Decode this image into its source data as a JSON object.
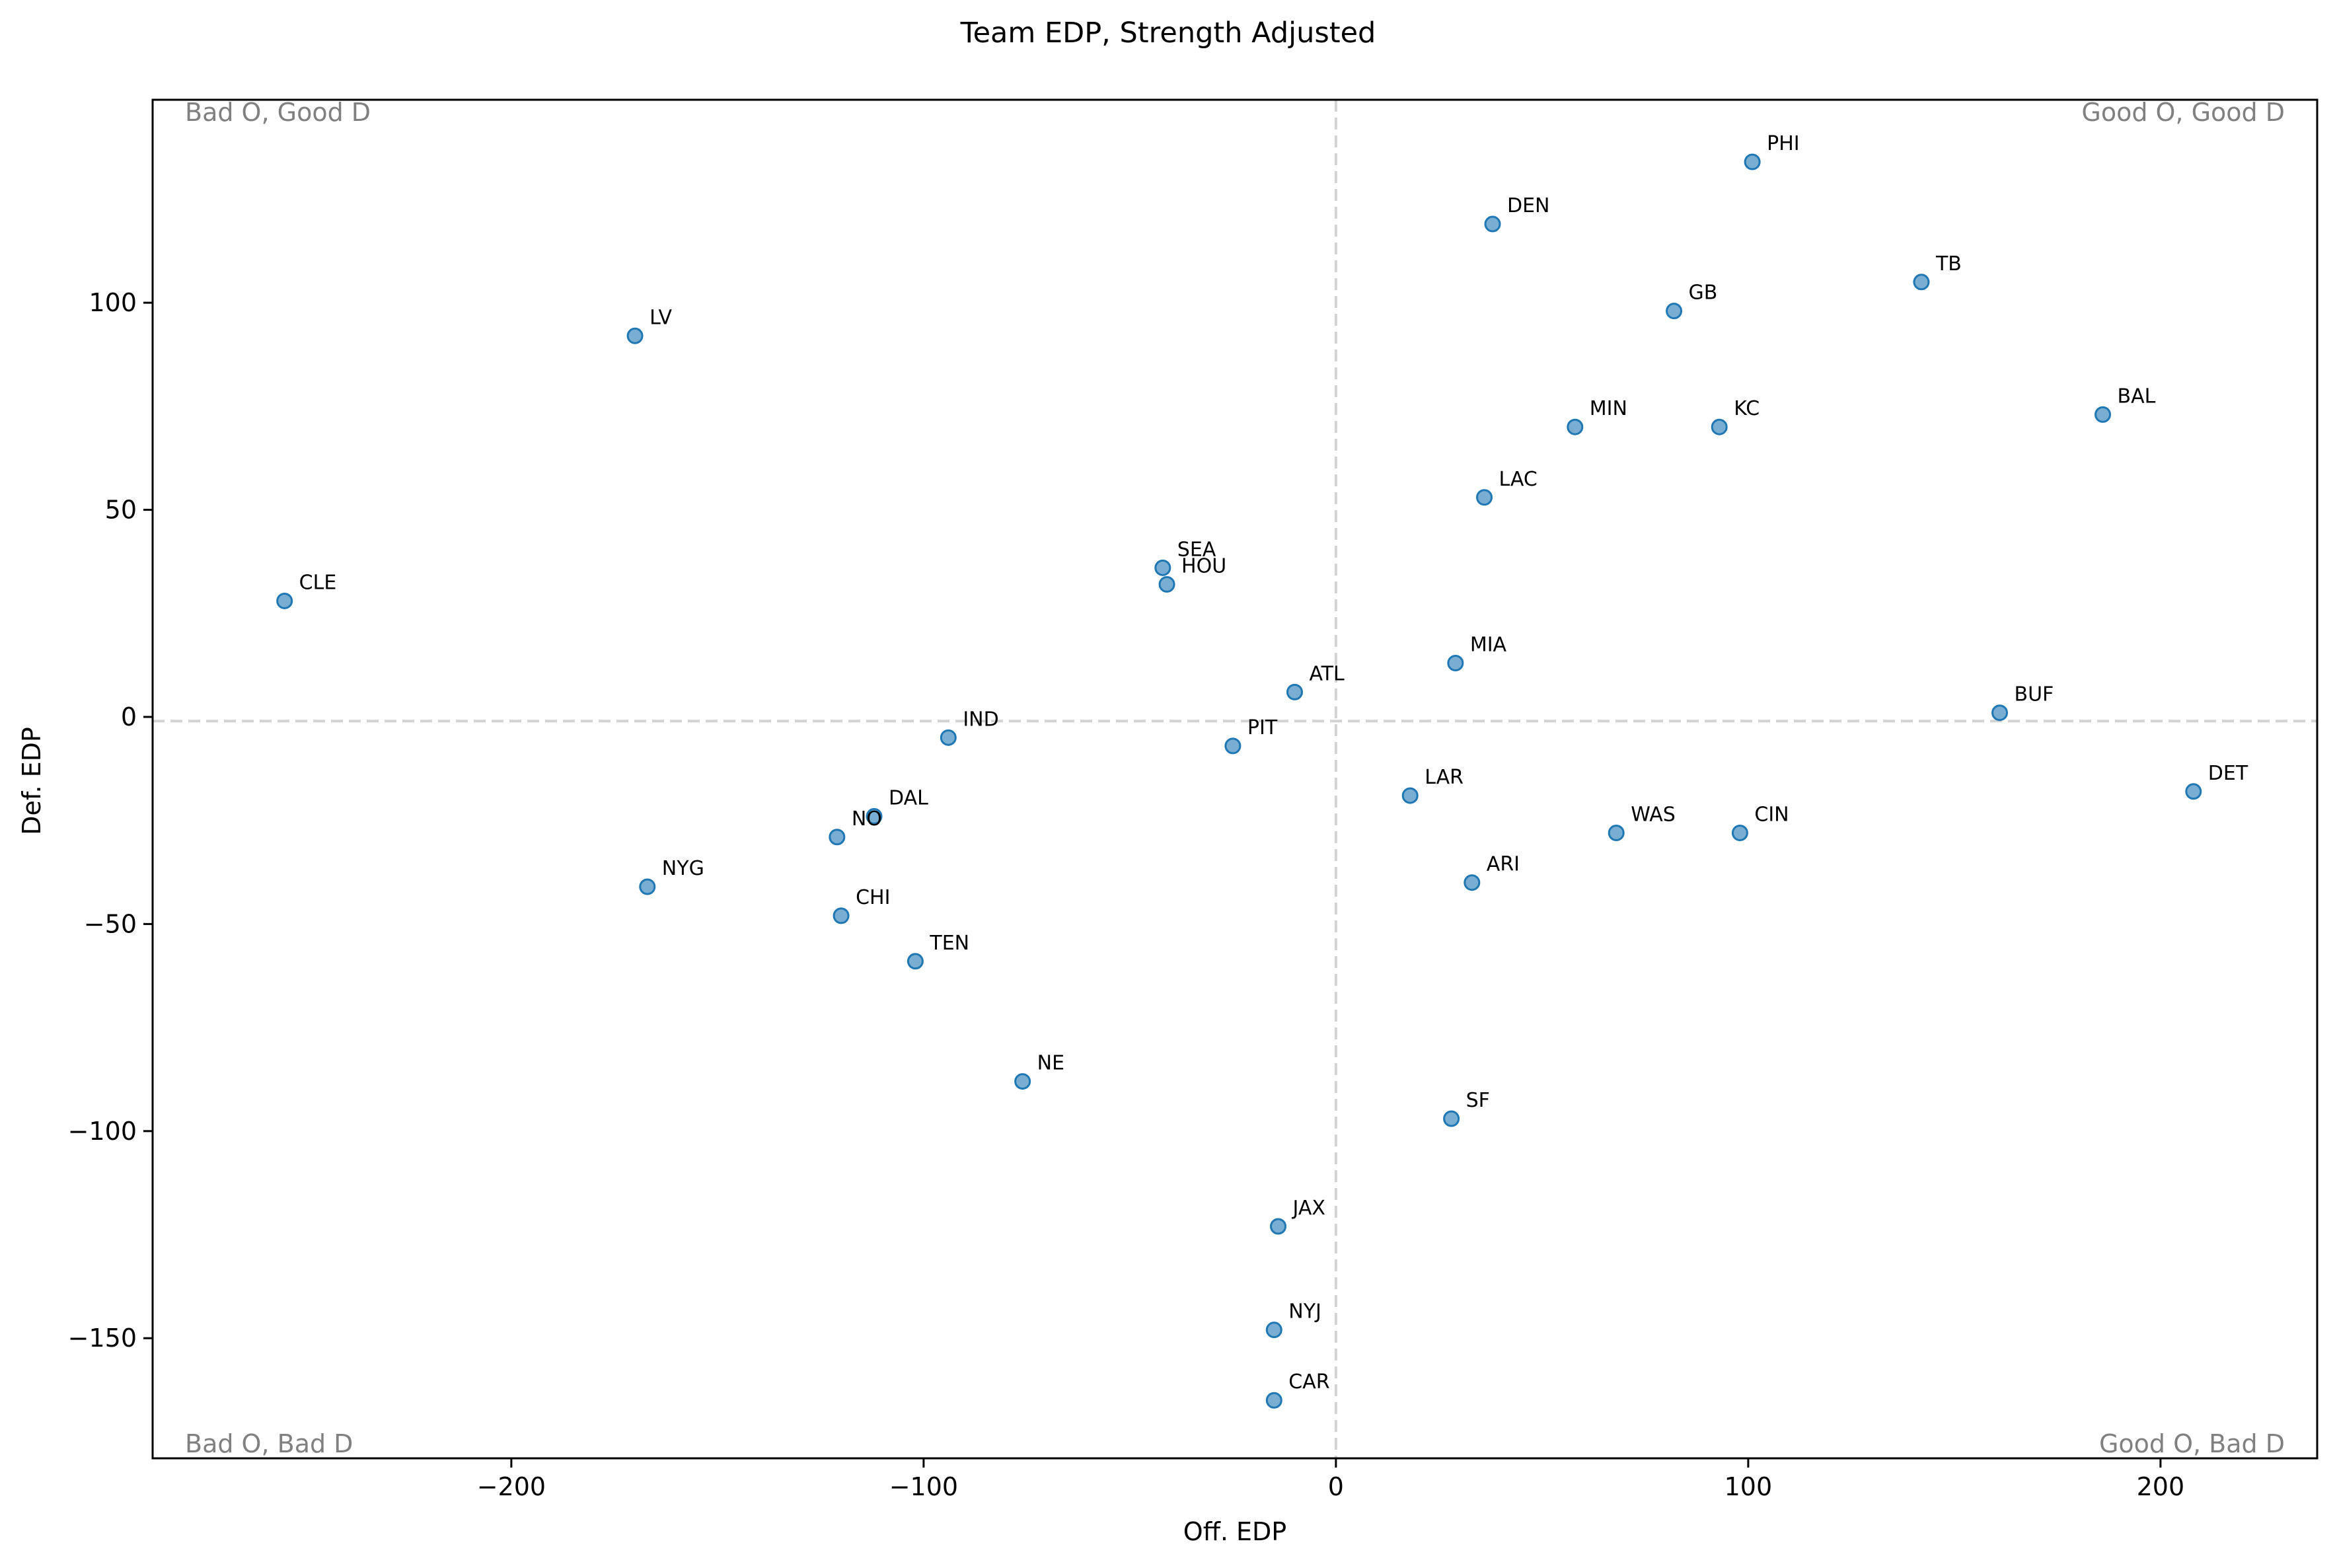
{
  "chart_data": {
    "type": "scatter",
    "title": "Team EDP, Strength Adjusted",
    "xlabel": "Off. EDP",
    "ylabel": "Def. EDP",
    "xlim": [
      -287,
      238
    ],
    "ylim": [
      -179,
      149
    ],
    "xticks": [
      -200,
      -100,
      0,
      100,
      200
    ],
    "yticks": [
      -150,
      -100,
      -50,
      0,
      50,
      100
    ],
    "xtick_labels": [
      "−200",
      "−100",
      "0",
      "100",
      "200"
    ],
    "ytick_labels": [
      "−150",
      "−100",
      "−50",
      "0",
      "50",
      "100"
    ],
    "reference_lines": {
      "x": 0,
      "y": -1,
      "style": "dashed",
      "color": "#d3d3d3"
    },
    "grid": false,
    "marker_color": "#1f77b4",
    "quadrant_labels": {
      "top_left": "Bad O, Good D",
      "top_right": "Good O, Good D",
      "bottom_left": "Bad O, Bad D",
      "bottom_right": "Good O, Bad D"
    },
    "points": [
      {
        "label": "PHI",
        "x": 101,
        "y": 134
      },
      {
        "label": "DEN",
        "x": 38,
        "y": 119
      },
      {
        "label": "TB",
        "x": 142,
        "y": 105
      },
      {
        "label": "GB",
        "x": 82,
        "y": 98
      },
      {
        "label": "LV",
        "x": -170,
        "y": 92
      },
      {
        "label": "BAL",
        "x": 186,
        "y": 73
      },
      {
        "label": "KC",
        "x": 93,
        "y": 70
      },
      {
        "label": "MIN",
        "x": 58,
        "y": 70
      },
      {
        "label": "LAC",
        "x": 36,
        "y": 53
      },
      {
        "label": "SEA",
        "x": -42,
        "y": 36
      },
      {
        "label": "HOU",
        "x": -41,
        "y": 32
      },
      {
        "label": "CLE",
        "x": -255,
        "y": 28
      },
      {
        "label": "MIA",
        "x": 29,
        "y": 13
      },
      {
        "label": "ATL",
        "x": -10,
        "y": 6
      },
      {
        "label": "BUF",
        "x": 161,
        "y": 1
      },
      {
        "label": "IND",
        "x": -94,
        "y": -5
      },
      {
        "label": "PIT",
        "x": -25,
        "y": -7
      },
      {
        "label": "DET",
        "x": 208,
        "y": -18
      },
      {
        "label": "LAR",
        "x": 18,
        "y": -19
      },
      {
        "label": "DAL",
        "x": -112,
        "y": -24
      },
      {
        "label": "CIN",
        "x": 98,
        "y": -28
      },
      {
        "label": "WAS",
        "x": 68,
        "y": -28
      },
      {
        "label": "NO",
        "x": -121,
        "y": -29
      },
      {
        "label": "ARI",
        "x": 33,
        "y": -40
      },
      {
        "label": "NYG",
        "x": -167,
        "y": -41
      },
      {
        "label": "CHI",
        "x": -120,
        "y": -48
      },
      {
        "label": "TEN",
        "x": -102,
        "y": -59
      },
      {
        "label": "NE",
        "x": -76,
        "y": -88
      },
      {
        "label": "SF",
        "x": 28,
        "y": -97
      },
      {
        "label": "JAX",
        "x": -14,
        "y": -123
      },
      {
        "label": "NYJ",
        "x": -15,
        "y": -148
      },
      {
        "label": "CAR",
        "x": -15,
        "y": -165
      }
    ]
  }
}
